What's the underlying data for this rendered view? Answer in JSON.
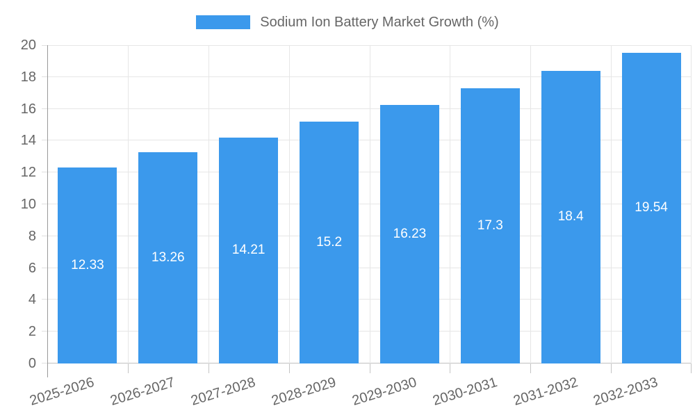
{
  "legend": {
    "label": "Sodium Ion Battery Market Growth (%)"
  },
  "chart_data": {
    "type": "bar",
    "title": "Sodium Ion Battery Market Growth (%)",
    "categories": [
      "2025-2026",
      "2026-2027",
      "2027-2028",
      "2028-2029",
      "2029-2030",
      "2030-2031",
      "2031-2032",
      "2032-2033"
    ],
    "values": [
      12.33,
      13.26,
      14.21,
      15.2,
      16.23,
      17.3,
      18.4,
      19.54
    ],
    "value_labels": [
      "12.33",
      "13.26",
      "14.21",
      "15.2",
      "16.23",
      "17.3",
      "18.4",
      "19.54"
    ],
    "yticks": [
      0,
      2,
      4,
      6,
      8,
      10,
      12,
      14,
      16,
      18,
      20
    ],
    "ylim": [
      0,
      20
    ],
    "xlabel": "",
    "ylabel": "",
    "grid": true,
    "legend_position": "top-center",
    "colors": {
      "bar": "#3B99EC",
      "value_label_text": "#FFFFFF",
      "axis_text": "#666666",
      "grid_line": "#E6E6E6",
      "y_axis_line": "#999999",
      "x_axis_line": "#BFBFBF",
      "y_tick_mark": "#E0E0E0",
      "x_tick_mark": "#C4C4C4",
      "background": "#FFFFFF"
    }
  }
}
